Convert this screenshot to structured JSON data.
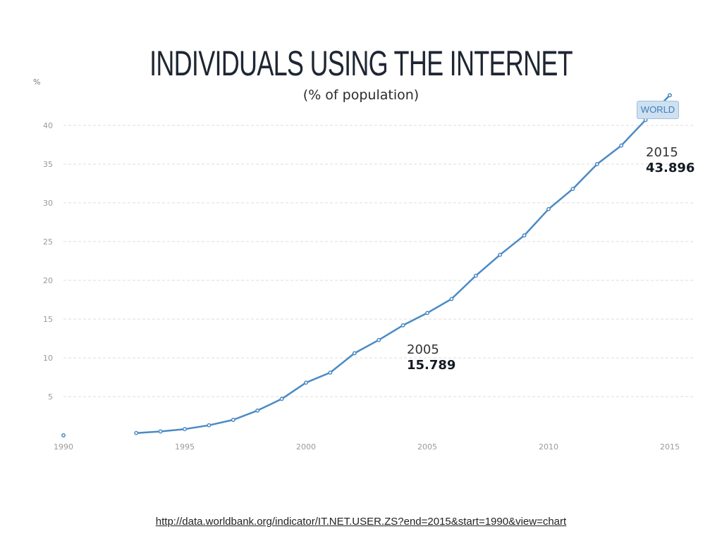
{
  "header": {
    "title": "INDIVIDUALS USING THE INTERNET",
    "subtitle": "(% of population)"
  },
  "source_link": "http://data.worldbank.org/indicator/IT.NET.USER.ZS?end=2015&start=1990&view=chart",
  "colors": {
    "line": "#4a8ac4",
    "grid": "#dddddd",
    "tick": "#9a9a9a"
  },
  "chart_data": {
    "type": "line",
    "y_unit_label": "%",
    "xlim": [
      1990,
      2015
    ],
    "ylim": [
      0,
      45
    ],
    "x_ticks": [
      1990,
      1995,
      2000,
      2005,
      2010,
      2015
    ],
    "y_ticks": [
      5,
      10,
      15,
      20,
      25,
      30,
      35,
      40
    ],
    "grid": true,
    "series": [
      {
        "name": "WORLD",
        "points": [
          {
            "x": 1990,
            "y": 0.0
          },
          {
            "x": 1993,
            "y": 0.3
          },
          {
            "x": 1994,
            "y": 0.5
          },
          {
            "x": 1995,
            "y": 0.8
          },
          {
            "x": 1996,
            "y": 1.3
          },
          {
            "x": 1997,
            "y": 2.0
          },
          {
            "x": 1998,
            "y": 3.2
          },
          {
            "x": 1999,
            "y": 4.7
          },
          {
            "x": 2000,
            "y": 6.8
          },
          {
            "x": 2001,
            "y": 8.1
          },
          {
            "x": 2002,
            "y": 10.6
          },
          {
            "x": 2003,
            "y": 12.3
          },
          {
            "x": 2004,
            "y": 14.2
          },
          {
            "x": 2005,
            "y": 15.789
          },
          {
            "x": 2006,
            "y": 17.6
          },
          {
            "x": 2007,
            "y": 20.6
          },
          {
            "x": 2008,
            "y": 23.3
          },
          {
            "x": 2009,
            "y": 25.8
          },
          {
            "x": 2010,
            "y": 29.2
          },
          {
            "x": 2011,
            "y": 31.8
          },
          {
            "x": 2012,
            "y": 35.0
          },
          {
            "x": 2013,
            "y": 37.4
          },
          {
            "x": 2014,
            "y": 40.7
          },
          {
            "x": 2015,
            "y": 43.896
          }
        ]
      }
    ],
    "annotations": [
      {
        "year": "2005",
        "value": "15.789"
      },
      {
        "year": "2015",
        "value": "43.896"
      }
    ]
  }
}
